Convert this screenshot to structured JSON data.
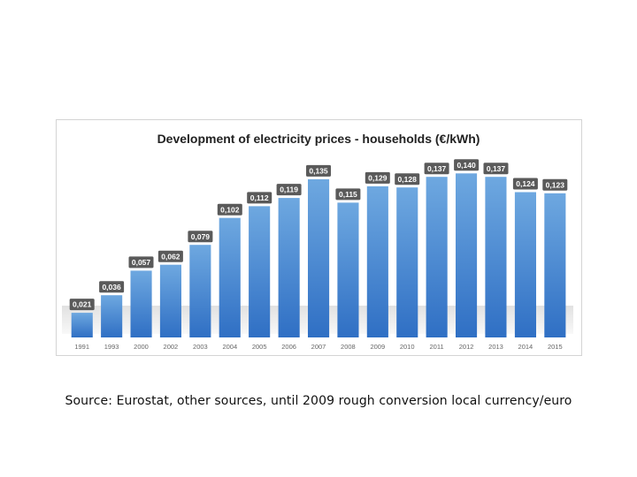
{
  "chart_data": {
    "type": "bar",
    "title": "Development of electricity prices - households (€/kWh)",
    "xlabel": "",
    "ylabel": "",
    "ylim": [
      0,
      0.15
    ],
    "grid": false,
    "legend": "none",
    "categories": [
      "1991",
      "1993",
      "2000",
      "2002",
      "2003",
      "2004",
      "2005",
      "2006",
      "2007",
      "2008",
      "2009",
      "2010",
      "2011",
      "2012",
      "2013",
      "2014",
      "2015"
    ],
    "values": [
      0.021,
      0.036,
      0.057,
      0.062,
      0.079,
      0.102,
      0.112,
      0.119,
      0.135,
      0.115,
      0.129,
      0.128,
      0.137,
      0.14,
      0.137,
      0.124,
      0.123
    ],
    "data_labels": [
      "0,021",
      "0,036",
      "0,057",
      "0,062",
      "0,079",
      "0,102",
      "0,112",
      "0,119",
      "0,135",
      "0,115",
      "0,129",
      "0,128",
      "0,137",
      "0,140",
      "0,137",
      "0,124",
      "0,123"
    ],
    "colors": {
      "bar_top": "#6ea8e0",
      "bar_bottom": "#2f6fc4",
      "label_bg": "#5a5a5a",
      "label_text": "#ffffff",
      "title": "#222222",
      "tick": "#666666"
    }
  },
  "caption": "Source: Eurostat, other sources, until 2009 rough conversion local currency/euro"
}
